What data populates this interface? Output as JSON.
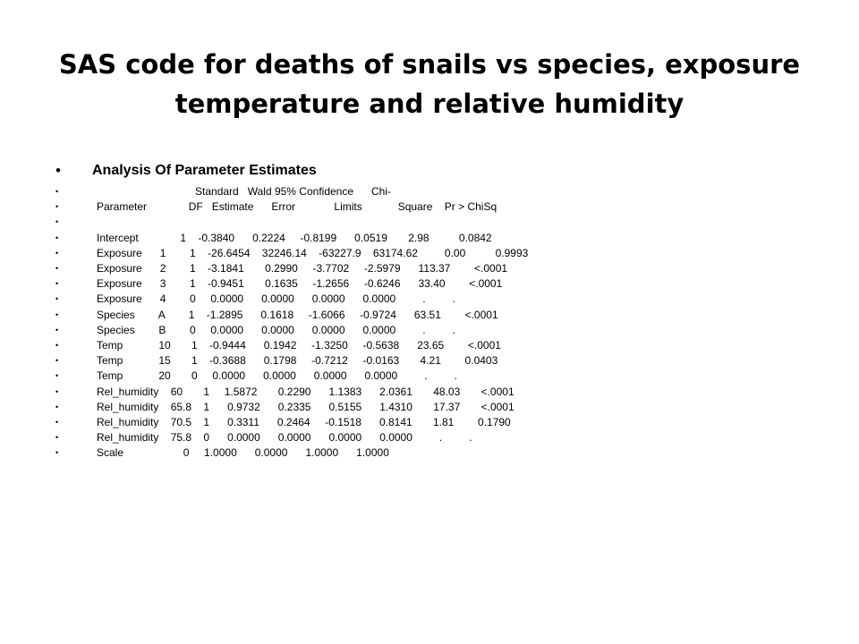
{
  "title": "SAS code for deaths of snails vs species, exposure temperature and relative humidity",
  "bullet_glyph": "•",
  "heading": "Analysis Of Parameter Estimates",
  "lines": [
    "                                 Standard   Wald 95% Confidence      Chi-",
    "Parameter              DF   Estimate      Error             Limits            Square    Pr > ChiSq",
    "",
    "Intercept              1    -0.3840      0.2224     -0.8199      0.0519       2.98          0.0842",
    "Exposure      1        1    -26.6454    32246.14    -63227.9    63174.62         0.00          0.9993",
    "Exposure      2        1    -3.1841       0.2990     -3.7702     -2.5979      113.37        <.0001",
    "Exposure      3        1    -0.9451       0.1635     -1.2656     -0.6246      33.40        <.0001",
    "Exposure      4        0     0.0000      0.0000      0.0000      0.0000         .         .",
    "Species        A        1    -1.2895      0.1618     -1.6066     -0.9724      63.51        <.0001",
    "Species        B        0     0.0000      0.0000      0.0000      0.0000         .         .",
    "Temp            10       1    -0.9444      0.1942     -1.3250     -0.5638      23.65        <.0001",
    "Temp            15       1    -0.3688      0.1798     -0.7212     -0.0163       4.21        0.0403",
    "Temp            20       0     0.0000      0.0000      0.0000      0.0000         .         .",
    "Rel_humidity    60       1     1.5872       0.2290      1.1383      2.0361       48.03       <.0001",
    "Rel_humidity    65.8    1      0.9732      0.2335      0.5155      1.4310       17.37       <.0001",
    "Rel_humidity    70.5    1      0.3311      0.2464     -0.1518      0.8141       1.81        0.1790",
    "Rel_humidity    75.8    0      0.0000      0.0000      0.0000      0.0000         .         .",
    "Scale                    0     1.0000      0.0000      1.0000      1.0000"
  ]
}
